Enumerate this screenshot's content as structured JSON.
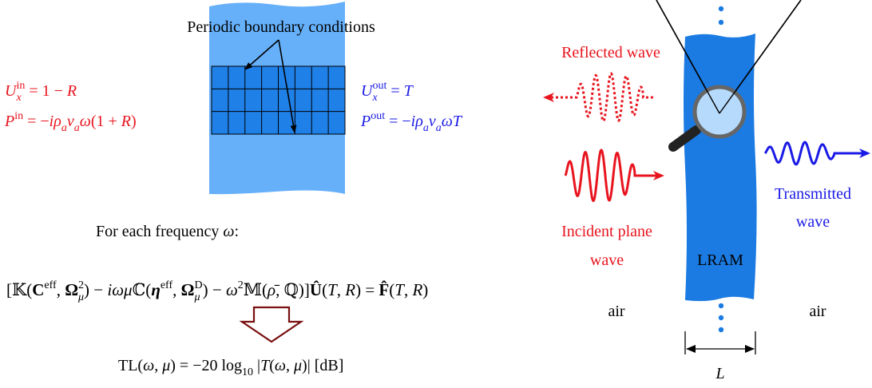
{
  "left": {
    "periodic_label": "Periodic boundary conditions",
    "inlet_velocity": [
      "U",
      "x",
      "in",
      " = 1 − ",
      "R"
    ],
    "inlet_pressure": [
      "P",
      "in",
      " = −",
      "iρ",
      "a",
      "v",
      "a",
      "ω",
      "(1 + ",
      "R",
      ")"
    ],
    "outlet_velocity": [
      "U",
      "x",
      "out",
      " = ",
      "T"
    ],
    "outlet_pressure": [
      "P",
      "out",
      " = −",
      "iρ",
      "a",
      "v",
      "a",
      "ωT"
    ],
    "frequency_line": [
      "For each frequency ",
      "ω",
      ":"
    ],
    "system_equation": [
      "[𝕂(",
      "C",
      "eff",
      ", ",
      "Ω",
      "μ",
      "2",
      ") − ",
      "iωμ",
      "ℂ(",
      "η",
      "eff",
      ", ",
      "Ω",
      "μ",
      "D",
      ") − ",
      "ω",
      "2",
      "𝕄(",
      "ρ̄",
      ", ℚ)]",
      "Û",
      "(",
      "T",
      ", ",
      "R",
      ") = ",
      "F̂",
      "(",
      "T",
      ", ",
      "R",
      ")"
    ],
    "tl_equation": [
      "TL(",
      "ω",
      ", ",
      "μ",
      ") = −20 log",
      "10",
      " |",
      "T",
      "(",
      "ω",
      ", ",
      "μ",
      ")| [dB]"
    ]
  },
  "right": {
    "reflected_label": "Reflected wave",
    "incident_label": [
      "Incident plane",
      "wave"
    ],
    "transmitted_label": [
      "Transmitted",
      "wave"
    ],
    "lram_label": "LRAM",
    "air_left": "air",
    "air_right": "air",
    "length_label": "L"
  }
}
